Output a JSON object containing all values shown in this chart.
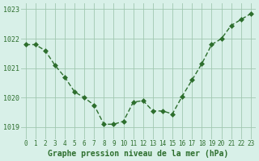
{
  "hours": [
    0,
    1,
    2,
    3,
    4,
    5,
    6,
    7,
    8,
    9,
    10,
    11,
    12,
    13,
    14,
    15,
    16,
    17,
    18,
    19,
    20,
    21,
    22,
    23
  ],
  "pressure": [
    1021.8,
    1021.8,
    1021.6,
    1021.1,
    1020.7,
    1020.2,
    1020.0,
    1019.75,
    1019.1,
    1019.1,
    1019.2,
    1019.85,
    1019.9,
    1019.55,
    1019.55,
    1019.45,
    1020.05,
    1020.6,
    1021.15,
    1021.8,
    1022.0,
    1022.45,
    1022.65,
    1022.85
  ],
  "line_color": "#2d6e2d",
  "marker": "D",
  "marker_size": 3,
  "bg_color": "#d8f0e8",
  "grid_color": "#a0c8b0",
  "xlabel": "Graphe pression niveau de la mer (hPa)",
  "xlabel_color": "#2d6e2d",
  "ylabel_color": "#2d6e2d",
  "tick_color": "#2d6e2d",
  "ylim": [
    1018.6,
    1023.2
  ],
  "yticks": [
    1019,
    1020,
    1021,
    1022,
    1023
  ],
  "xlim": [
    -0.5,
    23.5
  ],
  "xticks": [
    0,
    1,
    2,
    3,
    4,
    5,
    6,
    7,
    8,
    9,
    10,
    11,
    12,
    13,
    14,
    15,
    16,
    17,
    18,
    19,
    20,
    21,
    22,
    23
  ]
}
